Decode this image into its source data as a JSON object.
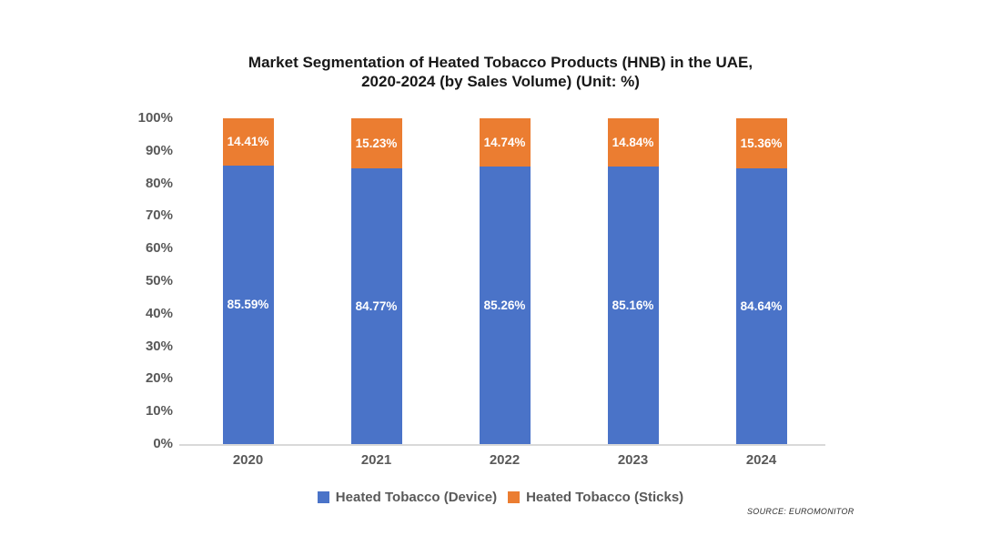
{
  "title": {
    "line1": "Market Segmentation of Heated Tobacco Products (HNB) in the UAE,",
    "line2": "2020-2024 (by Sales Volume) (Unit: %)"
  },
  "chart_data": {
    "type": "bar",
    "stacked": true,
    "title": "Market Segmentation of Heated Tobacco Products (HNB) in the UAE, 2020-2024 (by Sales Volume) (Unit: %)",
    "xlabel": "",
    "ylabel": "",
    "categories": [
      "2020",
      "2021",
      "2022",
      "2023",
      "2024"
    ],
    "series": [
      {
        "name": "Heated Tobacco (Device)",
        "color": "#4A73C8",
        "values": [
          85.59,
          84.77,
          85.26,
          85.16,
          84.64
        ],
        "labels": [
          "85.59%",
          "84.77%",
          "85.26%",
          "85.16%",
          "84.64%"
        ]
      },
      {
        "name": "Heated Tobacco (Sticks)",
        "color": "#EB7D31",
        "values": [
          14.41,
          15.23,
          14.74,
          14.84,
          15.36
        ],
        "labels": [
          "14.41%",
          "15.23%",
          "14.74%",
          "14.84%",
          "15.36%"
        ]
      }
    ],
    "ylim": [
      0,
      100
    ],
    "ytick_step": 10,
    "ytick_labels": [
      "0%",
      "10%",
      "20%",
      "30%",
      "40%",
      "50%",
      "60%",
      "70%",
      "80%",
      "90%",
      "100%"
    ],
    "grid": false,
    "legend_position": "bottom"
  },
  "legend": {
    "items": [
      {
        "label": "Heated Tobacco (Device)",
        "color": "#4A73C8"
      },
      {
        "label": "Heated Tobacco (Sticks)",
        "color": "#EB7D31"
      }
    ]
  },
  "source": {
    "text": "SOURCE: EUROMONITOR"
  },
  "colors": {
    "device_blue": "#4A73C8",
    "sticks_orange": "#EB7D31",
    "axis_gray": "#d9d9d9",
    "label_gray": "#595959"
  }
}
